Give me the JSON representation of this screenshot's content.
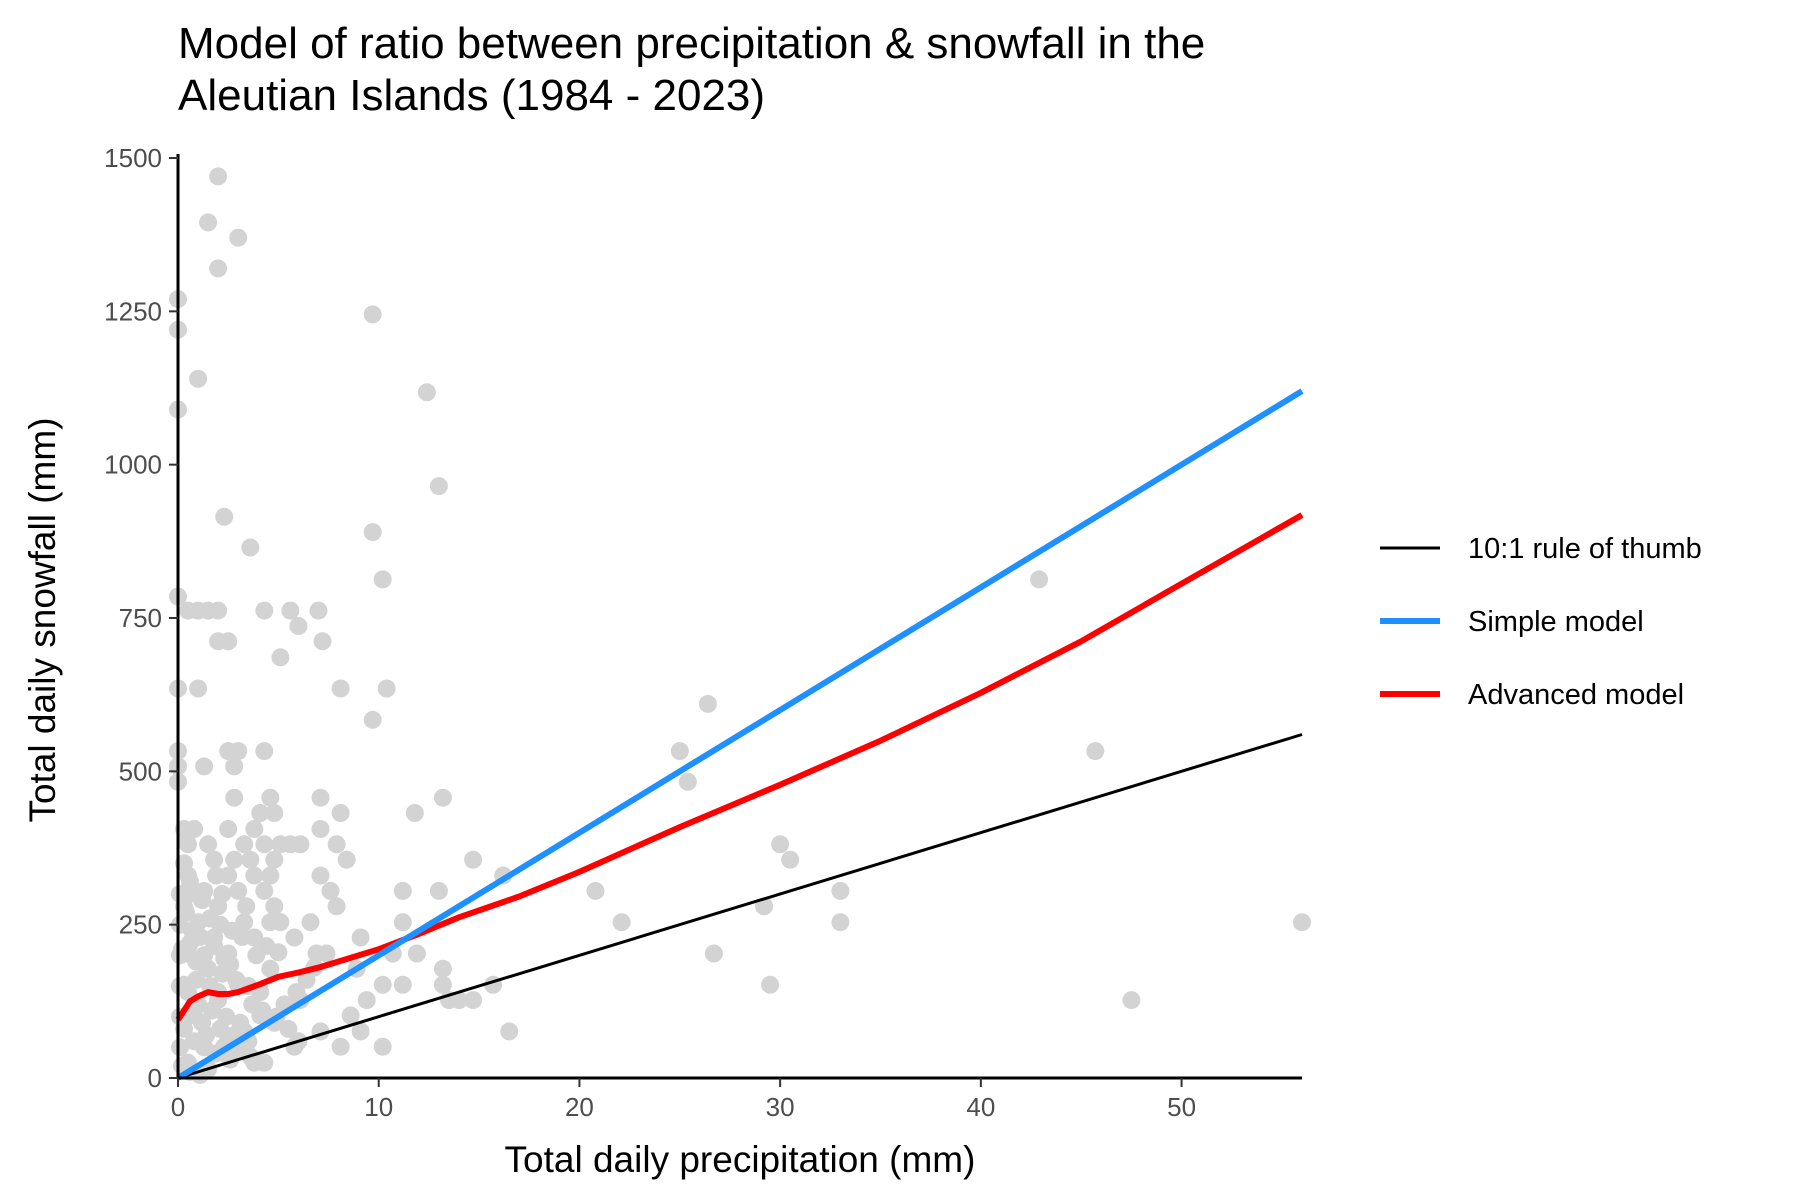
{
  "chart_data": {
    "type": "scatter",
    "title_lines": [
      "Model of ratio between precipitation & snowfall in the",
      "Aleutian Islands (1984 - 2023)"
    ],
    "xlabel": "Total daily precipitation (mm)",
    "ylabel": "Total daily snowfall (mm)",
    "xlim": [
      0,
      56
    ],
    "ylim": [
      0,
      1500
    ],
    "x_ticks": [
      0,
      10,
      20,
      30,
      40,
      50
    ],
    "y_ticks": [
      0,
      250,
      500,
      750,
      1000,
      1250,
      1500
    ],
    "grid": false,
    "legend_position": "right",
    "point_color": "#d3d3d3",
    "observations": [
      [
        2.0,
        1470
      ],
      [
        1.5,
        1395
      ],
      [
        3.0,
        1370
      ],
      [
        2.0,
        1320
      ],
      [
        0.0,
        1270
      ],
      [
        0.0,
        1220
      ],
      [
        1.0,
        1140
      ],
      [
        0.0,
        1090
      ],
      [
        9.7,
        1245
      ],
      [
        12.4,
        1118
      ],
      [
        13.0,
        965
      ],
      [
        2.3,
        915
      ],
      [
        3.6,
        865
      ],
      [
        9.7,
        890
      ],
      [
        10.2,
        813
      ],
      [
        0.0,
        785
      ],
      [
        0.5,
        762
      ],
      [
        1.0,
        762
      ],
      [
        1.5,
        762
      ],
      [
        2.0,
        762
      ],
      [
        4.3,
        762
      ],
      [
        5.6,
        762
      ],
      [
        7.0,
        762
      ],
      [
        6.0,
        737
      ],
      [
        2.0,
        712
      ],
      [
        2.5,
        712
      ],
      [
        7.2,
        712
      ],
      [
        5.1,
        686
      ],
      [
        0.0,
        635
      ],
      [
        1.0,
        635
      ],
      [
        8.1,
        635
      ],
      [
        10.4,
        635
      ],
      [
        9.7,
        584
      ],
      [
        0.0,
        533
      ],
      [
        2.5,
        533
      ],
      [
        3.0,
        533
      ],
      [
        4.3,
        533
      ],
      [
        0.0,
        508
      ],
      [
        1.3,
        508
      ],
      [
        2.8,
        508
      ],
      [
        0.0,
        483
      ],
      [
        2.8,
        457
      ],
      [
        4.6,
        457
      ],
      [
        7.1,
        457
      ],
      [
        11.8,
        432
      ],
      [
        13.2,
        457
      ],
      [
        4.1,
        432
      ],
      [
        4.8,
        432
      ],
      [
        8.1,
        432
      ],
      [
        0.3,
        406
      ],
      [
        0.8,
        406
      ],
      [
        2.5,
        406
      ],
      [
        3.8,
        406
      ],
      [
        7.1,
        406
      ],
      [
        0.5,
        381
      ],
      [
        1.5,
        381
      ],
      [
        3.3,
        381
      ],
      [
        4.3,
        381
      ],
      [
        5.1,
        381
      ],
      [
        5.6,
        381
      ],
      [
        6.1,
        381
      ],
      [
        7.9,
        381
      ],
      [
        1.8,
        356
      ],
      [
        2.8,
        356
      ],
      [
        3.6,
        356
      ],
      [
        4.8,
        356
      ],
      [
        8.4,
        356
      ],
      [
        14.7,
        356
      ],
      [
        0.5,
        330
      ],
      [
        2.5,
        330
      ],
      [
        3.8,
        330
      ],
      [
        4.6,
        330
      ],
      [
        7.1,
        330
      ],
      [
        16.2,
        330
      ],
      [
        1.3,
        305
      ],
      [
        3.0,
        305
      ],
      [
        4.3,
        305
      ],
      [
        7.6,
        305
      ],
      [
        11.2,
        305
      ],
      [
        13.0,
        305
      ],
      [
        20.8,
        305
      ],
      [
        0.3,
        280
      ],
      [
        2.0,
        280
      ],
      [
        4.8,
        280
      ],
      [
        7.9,
        280
      ],
      [
        1.0,
        254
      ],
      [
        3.3,
        254
      ],
      [
        4.6,
        254
      ],
      [
        5.1,
        254
      ],
      [
        6.6,
        254
      ],
      [
        11.2,
        254
      ],
      [
        22.1,
        254
      ],
      [
        1.8,
        229
      ],
      [
        3.8,
        229
      ],
      [
        5.8,
        229
      ],
      [
        9.1,
        229
      ],
      [
        0.5,
        203
      ],
      [
        2.5,
        203
      ],
      [
        6.9,
        203
      ],
      [
        7.4,
        203
      ],
      [
        10.7,
        203
      ],
      [
        11.9,
        203
      ],
      [
        1.5,
        178
      ],
      [
        4.6,
        178
      ],
      [
        8.9,
        178
      ],
      [
        13.2,
        178
      ],
      [
        0.3,
        152
      ],
      [
        3.0,
        152
      ],
      [
        10.2,
        152
      ],
      [
        11.2,
        152
      ],
      [
        13.2,
        152
      ],
      [
        15.7,
        152
      ],
      [
        2.0,
        127
      ],
      [
        6.1,
        127
      ],
      [
        9.4,
        127
      ],
      [
        13.5,
        127
      ],
      [
        14.0,
        127
      ],
      [
        14.7,
        127
      ],
      [
        0.8,
        102
      ],
      [
        4.1,
        102
      ],
      [
        8.6,
        102
      ],
      [
        3.3,
        76
      ],
      [
        7.1,
        76
      ],
      [
        9.1,
        76
      ],
      [
        16.5,
        76
      ],
      [
        2.3,
        51
      ],
      [
        5.8,
        51
      ],
      [
        8.1,
        51
      ],
      [
        10.2,
        51
      ],
      [
        3.8,
        25
      ],
      [
        4.3,
        25
      ],
      [
        0.5,
        25
      ],
      [
        25.0,
        533
      ],
      [
        25.4,
        483
      ],
      [
        26.4,
        610
      ],
      [
        42.9,
        813
      ],
      [
        45.7,
        533
      ],
      [
        30.0,
        381
      ],
      [
        30.5,
        356
      ],
      [
        29.2,
        280
      ],
      [
        33.0,
        305
      ],
      [
        33.0,
        254
      ],
      [
        26.7,
        203
      ],
      [
        29.5,
        152
      ],
      [
        47.5,
        127
      ],
      [
        56.0,
        254
      ],
      [
        0.3,
        350
      ],
      [
        0.6,
        320
      ],
      [
        0.9,
        300
      ],
      [
        1.2,
        290
      ],
      [
        0.4,
        270
      ],
      [
        0.7,
        240
      ],
      [
        1.1,
        230
      ],
      [
        1.6,
        260
      ],
      [
        2.1,
        250
      ],
      [
        2.7,
        240
      ],
      [
        3.2,
        230
      ],
      [
        0.2,
        210
      ],
      [
        0.9,
        190
      ],
      [
        1.4,
        180
      ],
      [
        2.2,
        170
      ],
      [
        2.9,
        160
      ],
      [
        3.5,
        150
      ],
      [
        4.1,
        140
      ],
      [
        0.5,
        140
      ],
      [
        1.0,
        120
      ],
      [
        1.7,
        110
      ],
      [
        2.4,
        100
      ],
      [
        3.1,
        90
      ],
      [
        0.3,
        80
      ],
      [
        0.8,
        60
      ],
      [
        1.3,
        50
      ],
      [
        1.9,
        40
      ],
      [
        2.6,
        30
      ],
      [
        0.2,
        20
      ],
      [
        0.6,
        10
      ],
      [
        1.1,
        5
      ],
      [
        1.5,
        15
      ],
      [
        2.8,
        70
      ],
      [
        3.5,
        60
      ],
      [
        4.8,
        90
      ],
      [
        5.3,
        120
      ],
      [
        5.9,
        140
      ],
      [
        6.4,
        160
      ],
      [
        6.8,
        180
      ],
      [
        0.4,
        390
      ],
      [
        1.9,
        330
      ],
      [
        2.2,
        300
      ],
      [
        3.4,
        280
      ],
      [
        0.1,
        300
      ],
      [
        0.1,
        250
      ],
      [
        0.1,
        200
      ],
      [
        0.1,
        150
      ],
      [
        0.1,
        100
      ],
      [
        0.1,
        50
      ],
      [
        0.6,
        220
      ],
      [
        1.3,
        200
      ],
      [
        1.8,
        215
      ],
      [
        2.3,
        195
      ],
      [
        2.6,
        185
      ],
      [
        3.9,
        200
      ],
      [
        4.4,
        215
      ],
      [
        5.0,
        205
      ],
      [
        0.9,
        160
      ],
      [
        1.6,
        150
      ],
      [
        2.0,
        140
      ],
      [
        3.7,
        120
      ],
      [
        4.2,
        110
      ],
      [
        4.9,
        100
      ],
      [
        5.5,
        80
      ],
      [
        6.0,
        60
      ],
      [
        0.7,
        110
      ],
      [
        1.2,
        90
      ],
      [
        1.4,
        70
      ],
      [
        2.1,
        80
      ],
      [
        2.5,
        60
      ],
      [
        3.0,
        45
      ],
      [
        3.6,
        35
      ]
    ],
    "series": [
      {
        "name": "10:1 rule of thumb",
        "color": "#000000",
        "x": [
          0,
          56
        ],
        "y": [
          0,
          560
        ]
      },
      {
        "name": "Simple model",
        "color": "#1e90ff",
        "x": [
          0,
          56
        ],
        "y": [
          0,
          1120
        ]
      },
      {
        "name": "Advanced model",
        "color": "#ff0000",
        "x": [
          0,
          0.2,
          0.6,
          1.0,
          1.5,
          2.0,
          2.5,
          3.0,
          4.0,
          5.0,
          6.0,
          7.0,
          8.0,
          10.0,
          12.0,
          14.0,
          17.0,
          20.0,
          25.0,
          30.0,
          35.0,
          40.0,
          45.0,
          50.0,
          56.0
        ],
        "y": [
          95,
          105,
          125,
          133,
          140,
          137,
          137,
          140,
          152,
          165,
          172,
          180,
          190,
          210,
          235,
          262,
          296,
          336,
          409,
          478,
          550,
          628,
          712,
          806,
          918
        ]
      }
    ]
  }
}
